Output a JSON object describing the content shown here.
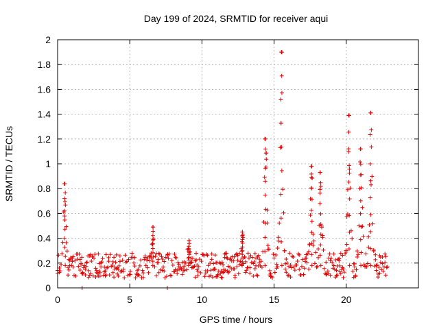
{
  "chart_data": {
    "type": "scatter",
    "title": "Day 199 of 2024, SRMTID for receiver aqui",
    "xlabel": "GPS time / hours",
    "ylabel": "SRMTID / TECUs",
    "xlim": [
      0,
      25
    ],
    "ylim": [
      0,
      2
    ],
    "xticks": [
      "0",
      "5",
      "10",
      "15",
      "20"
    ],
    "yticks": [
      "0",
      "0.2",
      "0.4",
      "0.6",
      "0.8",
      "1",
      "1.2",
      "1.4",
      "1.6",
      "1.8",
      "2"
    ],
    "grid": true,
    "marker": "+",
    "marker_color": "#e00000",
    "series": [
      {
        "name": "SRMTID",
        "baseline": {
          "x_start": 0.0,
          "x_end": 22.9,
          "step": 0.06,
          "level": 0.18,
          "spread": 0.1
        },
        "peaks": [
          {
            "x": 0.5,
            "y": 0.84,
            "width": 0.12
          },
          {
            "x": 6.6,
            "y": 0.49,
            "width": 0.08
          },
          {
            "x": 9.1,
            "y": 0.38,
            "width": 0.1
          },
          {
            "x": 12.8,
            "y": 0.45,
            "width": 0.08
          },
          {
            "x": 14.4,
            "y": 1.2,
            "width": 0.14
          },
          {
            "x": 15.5,
            "y": 1.9,
            "width": 0.14
          },
          {
            "x": 17.6,
            "y": 0.98,
            "width": 0.12
          },
          {
            "x": 18.2,
            "y": 0.93,
            "width": 0.14
          },
          {
            "x": 20.2,
            "y": 1.39,
            "width": 0.14
          },
          {
            "x": 21.0,
            "y": 1.12,
            "width": 0.16
          },
          {
            "x": 21.7,
            "y": 1.41,
            "width": 0.14
          }
        ],
        "zero_points": [
          1.7,
          7.6
        ]
      }
    ]
  }
}
